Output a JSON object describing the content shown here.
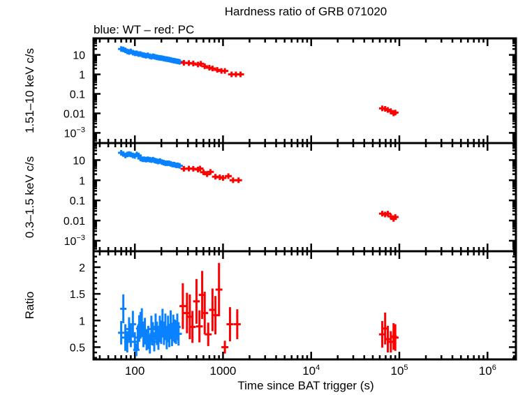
{
  "chart_data": {
    "type": "scatter",
    "title": "Hardness ratio of GRB 071020",
    "subtitle": "blue: WT – red: PC",
    "xlabel": "Time since BAT trigger (s)",
    "xscale": "log",
    "xlim": [
      34,
      2100000
    ],
    "xticks": [
      {
        "value": 100,
        "label": "100"
      },
      {
        "value": 1000,
        "label": "1000"
      },
      {
        "value": 10000,
        "label": "10",
        "sup": "4"
      },
      {
        "value": 100000,
        "label": "10",
        "sup": "5"
      },
      {
        "value": 1000000,
        "label": "10",
        "sup": "6"
      }
    ],
    "colors": {
      "WT": "#0a82ff",
      "PC": "#ff0000",
      "axes": "#000000"
    },
    "legend": "subtitle text, top-left",
    "panels": [
      {
        "id": "hard",
        "ylabel": "1.51–10 keV c/s",
        "yscale": "log",
        "ylim": [
          0.0003,
          70
        ],
        "yticks": [
          {
            "value": 10,
            "label": "10"
          },
          {
            "value": 1,
            "label": "1"
          },
          {
            "value": 0.1,
            "label": "0.1"
          },
          {
            "value": 0.01,
            "label": "0.01"
          },
          {
            "value": 0.001,
            "label": "10",
            "sup": "−3"
          }
        ],
        "series": [
          {
            "name": "WT",
            "points": [
              [
                70,
                20
              ],
              [
                74,
                19
              ],
              [
                78,
                17
              ],
              [
                82,
                15
              ],
              [
                86,
                14
              ],
              [
                90,
                15
              ],
              [
                95,
                13
              ],
              [
                100,
                12
              ],
              [
                105,
                12
              ],
              [
                110,
                11
              ],
              [
                116,
                11
              ],
              [
                122,
                10
              ],
              [
                128,
                9.5
              ],
              [
                134,
                9
              ],
              [
                140,
                9.5
              ],
              [
                147,
                8.5
              ],
              [
                154,
                8
              ],
              [
                161,
                8.5
              ],
              [
                168,
                8
              ],
              [
                176,
                7.5
              ],
              [
                184,
                7.2
              ],
              [
                193,
                7
              ],
              [
                202,
                6.8
              ],
              [
                212,
                6.5
              ],
              [
                222,
                6.2
              ],
              [
                232,
                6
              ],
              [
                243,
                5.8
              ],
              [
                255,
                5.5
              ],
              [
                267,
                5.2
              ],
              [
                280,
                5
              ],
              [
                293,
                4.8
              ],
              [
                307,
                4.6
              ],
              [
                322,
                4.4
              ]
            ]
          },
          {
            "name": "PC",
            "points": [
              [
                360,
                3.9
              ],
              [
                410,
                3.8
              ],
              [
                460,
                3.6
              ],
              [
                520,
                3.2
              ],
              [
                560,
                3.5
              ],
              [
                620,
                2.6
              ],
              [
                700,
                2.2
              ],
              [
                760,
                2.0
              ],
              [
                860,
                1.7
              ],
              [
                960,
                1.5
              ],
              [
                1050,
                1.5
              ],
              [
                1250,
                1.0
              ],
              [
                1400,
                1.0
              ],
              [
                1580,
                1.0
              ],
              [
                64000,
                0.018
              ],
              [
                69000,
                0.017
              ],
              [
                74000,
                0.015
              ],
              [
                80000,
                0.013
              ],
              [
                86000,
                0.01
              ],
              [
                90000,
                0.011
              ]
            ]
          }
        ]
      },
      {
        "id": "soft",
        "ylabel": "0.3–1.5 keV c/s",
        "yscale": "log",
        "ylim": [
          0.0003,
          70
        ],
        "yticks": [
          {
            "value": 10,
            "label": "10"
          },
          {
            "value": 1,
            "label": "1"
          },
          {
            "value": 0.1,
            "label": "0.1"
          },
          {
            "value": 0.01,
            "label": "0.01"
          },
          {
            "value": 0.001,
            "label": "10",
            "sup": "−3"
          }
        ],
        "series": [
          {
            "name": "WT",
            "points": [
              [
                70,
                23
              ],
              [
                74,
                20
              ],
              [
                78,
                17
              ],
              [
                82,
                19
              ],
              [
                86,
                20
              ],
              [
                90,
                19
              ],
              [
                95,
                17
              ],
              [
                100,
                16
              ],
              [
                105,
                19
              ],
              [
                110,
                17
              ],
              [
                116,
                12
              ],
              [
                122,
                11
              ],
              [
                128,
                11
              ],
              [
                134,
                10.5
              ],
              [
                140,
                11
              ],
              [
                147,
                10.5
              ],
              [
                154,
                10
              ],
              [
                161,
                10.5
              ],
              [
                168,
                9.5
              ],
              [
                176,
                9
              ],
              [
                184,
                8.5
              ],
              [
                193,
                9
              ],
              [
                202,
                8
              ],
              [
                212,
                7.5
              ],
              [
                222,
                7
              ],
              [
                232,
                7
              ],
              [
                243,
                7
              ],
              [
                255,
                6.5
              ],
              [
                267,
                6
              ],
              [
                280,
                6
              ],
              [
                293,
                5.5
              ],
              [
                307,
                5.5
              ],
              [
                322,
                5.2
              ]
            ]
          },
          {
            "name": "PC",
            "points": [
              [
                360,
                3.7
              ],
              [
                410,
                3.8
              ],
              [
                460,
                3.7
              ],
              [
                520,
                3.4
              ],
              [
                550,
                3.8
              ],
              [
                600,
                2.5
              ],
              [
                660,
                2.0
              ],
              [
                720,
                2.6
              ],
              [
                820,
                1.5
              ],
              [
                920,
                1.4
              ],
              [
                1000,
                1.3
              ],
              [
                1150,
                1.6
              ],
              [
                1300,
                1.0
              ],
              [
                1500,
                1.0
              ],
              [
                64000,
                0.022
              ],
              [
                69000,
                0.02
              ],
              [
                74000,
                0.022
              ],
              [
                80000,
                0.016
              ],
              [
                86000,
                0.012
              ],
              [
                90000,
                0.015
              ]
            ]
          }
        ]
      },
      {
        "id": "ratio",
        "ylabel": "Ratio",
        "yscale": "linear",
        "ylim": [
          0.27,
          2.3
        ],
        "yticks": [
          {
            "value": 2,
            "label": "2"
          },
          {
            "value": 1.5,
            "label": "1.5"
          },
          {
            "value": 1,
            "label": "1"
          },
          {
            "value": 0.5,
            "label": "0.5"
          }
        ],
        "series": [
          {
            "name": "WT",
            "points": [
              [
                70,
                0.77,
                0.22
              ],
              [
                74,
                1.22,
                0.27
              ],
              [
                78,
                0.68,
                0.25
              ],
              [
                82,
                0.6,
                0.2
              ],
              [
                86,
                0.84,
                0.22
              ],
              [
                90,
                0.72,
                0.22
              ],
              [
                95,
                0.93,
                0.25
              ],
              [
                100,
                0.6,
                0.18
              ],
              [
                104,
                0.45,
                0.12
              ],
              [
                108,
                0.68,
                0.22
              ],
              [
                112,
                0.85,
                0.25
              ],
              [
                116,
                0.91,
                0.25
              ],
              [
                120,
                0.96,
                0.27
              ],
              [
                125,
                0.72,
                0.22
              ],
              [
                130,
                0.8,
                0.25
              ],
              [
                136,
                0.64,
                0.2
              ],
              [
                142,
                0.68,
                0.22
              ],
              [
                148,
                0.56,
                0.18
              ],
              [
                154,
                0.84,
                0.25
              ],
              [
                160,
                0.75,
                0.22
              ],
              [
                166,
                0.6,
                0.18
              ],
              [
                172,
                0.88,
                0.25
              ],
              [
                178,
                0.76,
                0.22
              ],
              [
                185,
                0.65,
                0.2
              ],
              [
                192,
                0.84,
                0.25
              ],
              [
                199,
                0.78,
                0.22
              ],
              [
                206,
                0.95,
                0.27
              ],
              [
                214,
                0.76,
                0.22
              ],
              [
                222,
                0.88,
                0.25
              ],
              [
                230,
                0.68,
                0.22
              ],
              [
                238,
                0.84,
                0.25
              ],
              [
                246,
                0.7,
                0.2
              ],
              [
                255,
                0.92,
                0.27
              ],
              [
                264,
                0.74,
                0.22
              ],
              [
                273,
                0.86,
                0.25
              ],
              [
                283,
                0.8,
                0.22
              ],
              [
                293,
                0.78,
                0.22
              ],
              [
                303,
                0.88,
                0.25
              ],
              [
                313,
                0.75,
                0.22
              ]
            ]
          },
          {
            "name": "PC",
            "points": [
              [
                350,
                1.27,
                0.43
              ],
              [
                390,
                1.14,
                0.38
              ],
              [
                420,
                1.07,
                0.42
              ],
              [
                450,
                0.88,
                0.3
              ],
              [
                500,
                1.36,
                0.42
              ],
              [
                540,
                0.89,
                0.3
              ],
              [
                580,
                1.48,
                0.45
              ],
              [
                620,
                1.14,
                0.4
              ],
              [
                680,
                0.74,
                0.22
              ],
              [
                760,
                1.2,
                0.4
              ],
              [
                820,
                1.1,
                0.36
              ],
              [
                900,
                1.58,
                0.5
              ],
              [
                1050,
                0.5,
                0.12
              ],
              [
                1200,
                0.93,
                0.32
              ],
              [
                1450,
                0.93,
                0.28
              ],
              [
                64000,
                0.74,
                0.25
              ],
              [
                69000,
                0.85,
                0.3
              ],
              [
                74000,
                0.65,
                0.25
              ],
              [
                80000,
                0.6,
                0.2
              ],
              [
                86000,
                0.7,
                0.25
              ],
              [
                90000,
                0.68,
                0.25
              ]
            ]
          }
        ]
      }
    ]
  }
}
